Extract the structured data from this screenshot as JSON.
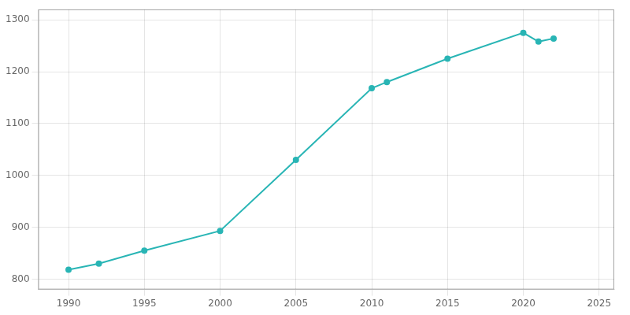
{
  "chart_data": {
    "type": "line",
    "x": [
      1990,
      1992,
      1995,
      2000,
      2005,
      2010,
      2011,
      2015,
      2020,
      2021,
      2022
    ],
    "values": [
      818,
      830,
      855,
      893,
      1030,
      1168,
      1180,
      1225,
      1275,
      1258,
      1264
    ],
    "color": "#29b5b5",
    "marker": "circle",
    "xlim": [
      1988,
      2026
    ],
    "ylim": [
      780,
      1320
    ],
    "xticks": [
      1990,
      1995,
      2000,
      2005,
      2010,
      2015,
      2020,
      2025
    ],
    "yticks": [
      800,
      900,
      1000,
      1100,
      1200,
      1300
    ],
    "grid": true
  }
}
